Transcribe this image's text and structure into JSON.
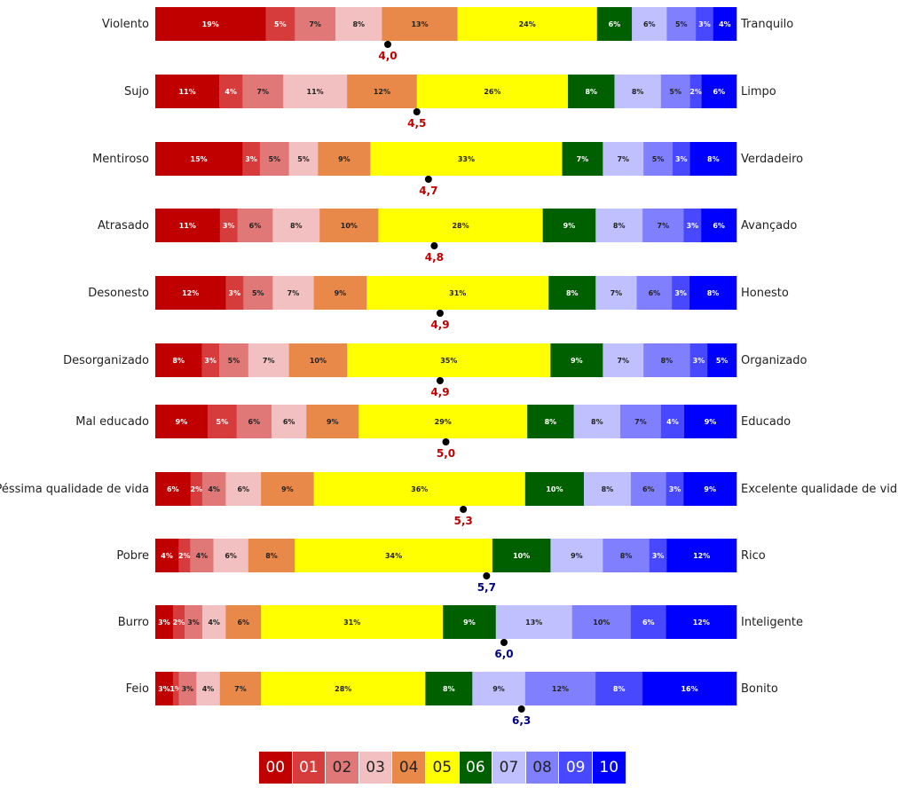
{
  "chart_data": {
    "type": "bar",
    "orientation": "horizontal-stacked-100",
    "scale_labels": [
      "00",
      "01",
      "02",
      "03",
      "04",
      "05",
      "06",
      "07",
      "08",
      "09",
      "10"
    ],
    "colors": [
      "#c00000",
      "#d63c3c",
      "#e07878",
      "#f2c0c0",
      "#e8894a",
      "#ffff00",
      "#006000",
      "#c0c0ff",
      "#8080ff",
      "#4848ff",
      "#0000ff"
    ],
    "text_colors": [
      "#ffffff",
      "#ffffff",
      "#222222",
      "#222222",
      "#222222",
      "#222222",
      "#ffffff",
      "#222222",
      "#222222",
      "#ffffff",
      "#ffffff"
    ],
    "mean_color_low": "#c00000",
    "mean_color_high": "#000080",
    "rows": [
      {
        "left": "Violento",
        "right": "Tranquilo",
        "values": [
          19,
          5,
          7,
          8,
          13,
          24,
          6,
          6,
          5,
          3,
          4
        ],
        "mean": 4.0,
        "mean_label": "4,0"
      },
      {
        "left": "Sujo",
        "right": "Limpo",
        "values": [
          11,
          4,
          7,
          11,
          12,
          26,
          8,
          8,
          5,
          2,
          6
        ],
        "mean": 4.5,
        "mean_label": "4,5"
      },
      {
        "left": "Mentiroso",
        "right": "Verdadeiro",
        "values": [
          15,
          3,
          5,
          5,
          9,
          33,
          7,
          7,
          5,
          3,
          8
        ],
        "mean": 4.7,
        "mean_label": "4,7"
      },
      {
        "left": "Atrasado",
        "right": "Avançado",
        "values": [
          11,
          3,
          6,
          8,
          10,
          28,
          9,
          8,
          7,
          3,
          6
        ],
        "mean": 4.8,
        "mean_label": "4,8"
      },
      {
        "left": "Desonesto",
        "right": "Honesto",
        "values": [
          12,
          3,
          5,
          7,
          9,
          31,
          8,
          7,
          6,
          3,
          8
        ],
        "mean": 4.9,
        "mean_label": "4,9"
      },
      {
        "left": "Desorganizado",
        "right": "Organizado",
        "values": [
          8,
          3,
          5,
          7,
          10,
          35,
          9,
          7,
          8,
          3,
          5
        ],
        "mean": 4.9,
        "mean_label": "4,9"
      },
      {
        "left": "Mal educado",
        "right": "Educado",
        "values": [
          9,
          5,
          6,
          6,
          9,
          29,
          8,
          8,
          7,
          4,
          9
        ],
        "mean": 5.0,
        "mean_label": "5,0"
      },
      {
        "left": "Péssima qualidade de vida",
        "right": "Excelente qualidade de vida",
        "values": [
          6,
          2,
          4,
          6,
          9,
          36,
          10,
          8,
          6,
          3,
          9
        ],
        "mean": 5.3,
        "mean_label": "5,3"
      },
      {
        "left": "Pobre",
        "right": "Rico",
        "values": [
          4,
          2,
          4,
          6,
          8,
          34,
          10,
          9,
          8,
          3,
          12
        ],
        "mean": 5.7,
        "mean_label": "5,7"
      },
      {
        "left": "Burro",
        "right": "Inteligente",
        "values": [
          3,
          2,
          3,
          4,
          6,
          31,
          9,
          13,
          10,
          6,
          12
        ],
        "mean": 6.0,
        "mean_label": "6,0"
      },
      {
        "left": "Feio",
        "right": "Bonito",
        "values": [
          3,
          1,
          3,
          4,
          7,
          28,
          8,
          9,
          12,
          8,
          16
        ],
        "mean": 6.3,
        "mean_label": "6,3"
      }
    ]
  }
}
